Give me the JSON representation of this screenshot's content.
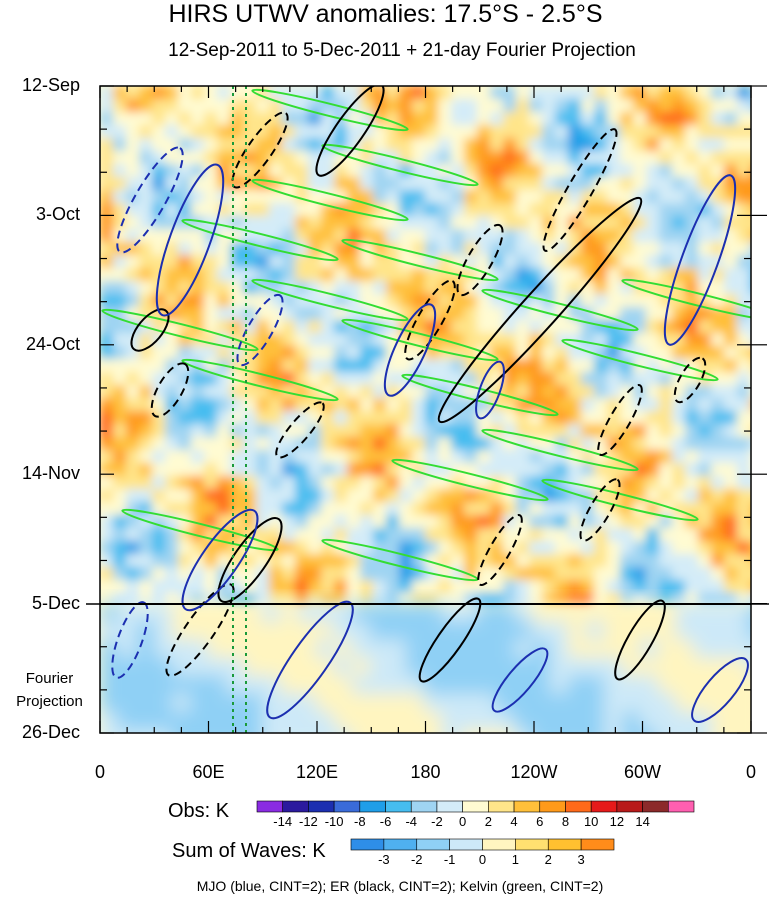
{
  "chart_data": {
    "type": "heatmap",
    "title": "HIRS UTWV anomalies: 17.5°S - 2.5°S",
    "subtitle": "12-Sep-2011 to 5-Dec-2011 + 21-day Fourier Projection",
    "x_axis": {
      "ticks": [
        "0",
        "60E",
        "120E",
        "180",
        "120W",
        "60W",
        "0"
      ],
      "range_deg": [
        0,
        360
      ]
    },
    "y_axis": {
      "ticks": [
        "12-Sep",
        "3-Oct",
        "24-Oct",
        "14-Nov",
        "5-Dec",
        "26-Dec"
      ],
      "range_days": [
        0,
        105
      ],
      "projection_start_day": 84
    },
    "projection_label": "Fourier Projection",
    "obs_colorbar": {
      "label": "Obs: K",
      "levels": [
        "-14",
        "-12",
        "-10",
        "-8",
        "-6",
        "-4",
        "-2",
        "0",
        "2",
        "4",
        "6",
        "8",
        "10",
        "12",
        "14"
      ],
      "colors": [
        "#8a2be2",
        "#2b1a9e",
        "#1c2fb0",
        "#3a6bd9",
        "#1f9ee8",
        "#46bdf0",
        "#9fd4f2",
        "#d4ecf8",
        "#fffbd2",
        "#ffe58a",
        "#ffc03a",
        "#ff9a1a",
        "#ff6a1a",
        "#e61a1a",
        "#b81a1a",
        "#8c2a2a",
        "#ff5fb0"
      ]
    },
    "waves_colorbar": {
      "label": "Sum of Waves: K",
      "levels": [
        "-3",
        "-2",
        "-1",
        "0",
        "1",
        "2",
        "3"
      ],
      "colors": [
        "#2e8ee8",
        "#4fb0f0",
        "#8fd0f5",
        "#cde9f8",
        "#fff5c0",
        "#ffe070",
        "#ffc030",
        "#ff8c1a"
      ]
    },
    "footnote": "MJO (blue, CINT=2); ER (black, CINT=2); Kelvin (green, CINT=2)"
  }
}
